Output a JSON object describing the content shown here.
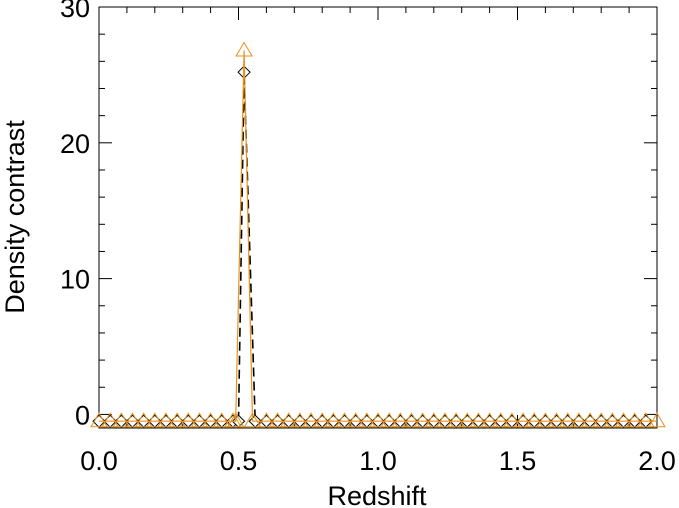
{
  "chart_data": {
    "type": "line",
    "xlabel": "Redshift",
    "ylabel": "Density contrast",
    "xlim": [
      0.0,
      2.0
    ],
    "ylim": [
      -1,
      30
    ],
    "x_ticks": [
      "0.0",
      "0.5",
      "1.0",
      "1.5",
      "2.0"
    ],
    "y_ticks": [
      "0",
      "10",
      "20",
      "30"
    ],
    "grid": false,
    "legend": "none",
    "series": [
      {
        "marker": "diamond",
        "line": "dashed",
        "color": "#000000",
        "x": [
          0.0,
          0.04,
          0.08,
          0.12,
          0.16,
          0.2,
          0.24,
          0.28,
          0.32,
          0.36,
          0.4,
          0.44,
          0.48,
          0.5,
          0.52,
          0.56,
          0.6,
          0.64,
          0.68,
          0.72,
          0.76,
          0.8,
          0.84,
          0.88,
          0.92,
          0.96,
          1.0,
          1.04,
          1.08,
          1.12,
          1.16,
          1.2,
          1.24,
          1.28,
          1.32,
          1.36,
          1.4,
          1.44,
          1.48,
          1.52,
          1.56,
          1.6,
          1.64,
          1.68,
          1.72,
          1.76,
          1.8,
          1.84,
          1.88,
          1.92,
          1.96
        ],
        "y": [
          -0.5,
          -0.5,
          -0.5,
          -0.5,
          -0.5,
          -0.5,
          -0.5,
          -0.5,
          -0.5,
          -0.5,
          -0.5,
          -0.5,
          -0.5,
          -0.5,
          25.2,
          -0.5,
          -0.5,
          -0.5,
          -0.5,
          -0.5,
          -0.5,
          -0.5,
          -0.5,
          -0.5,
          -0.5,
          -0.5,
          -0.5,
          -0.5,
          -0.5,
          -0.5,
          -0.5,
          -0.5,
          -0.5,
          -0.5,
          -0.5,
          -0.5,
          -0.5,
          -0.5,
          -0.5,
          -0.5,
          -0.5,
          -0.5,
          -0.5,
          -0.5,
          -0.5,
          -0.5,
          -0.5,
          -0.5,
          -0.5,
          -0.5,
          -0.5
        ]
      },
      {
        "marker": "triangle",
        "line": "solid",
        "color": "#e8921c",
        "x": [
          0.0,
          0.04,
          0.08,
          0.12,
          0.16,
          0.2,
          0.24,
          0.28,
          0.32,
          0.36,
          0.4,
          0.44,
          0.48,
          0.49,
          0.52,
          0.55,
          0.6,
          0.64,
          0.68,
          0.72,
          0.76,
          0.8,
          0.84,
          0.88,
          0.92,
          0.96,
          1.0,
          1.04,
          1.08,
          1.12,
          1.16,
          1.2,
          1.24,
          1.28,
          1.32,
          1.36,
          1.4,
          1.44,
          1.48,
          1.52,
          1.56,
          1.6,
          1.64,
          1.68,
          1.72,
          1.76,
          1.8,
          1.84,
          1.88,
          1.92,
          1.96,
          2.0
        ],
        "y": [
          -0.5,
          -0.5,
          -0.5,
          -0.5,
          -0.5,
          -0.5,
          -0.5,
          -0.5,
          -0.5,
          -0.5,
          -0.5,
          -0.5,
          -0.5,
          -0.5,
          26.8,
          -0.5,
          -0.5,
          -0.5,
          -0.5,
          -0.5,
          -0.5,
          -0.5,
          -0.5,
          -0.5,
          -0.5,
          -0.5,
          -0.5,
          -0.5,
          -0.5,
          -0.5,
          -0.5,
          -0.5,
          -0.5,
          -0.5,
          -0.5,
          -0.5,
          -0.5,
          -0.5,
          -0.5,
          -0.5,
          -0.5,
          -0.5,
          -0.5,
          -0.5,
          -0.5,
          -0.5,
          -0.5,
          -0.5,
          -0.5,
          -0.5,
          -0.5,
          -0.5
        ]
      }
    ]
  }
}
